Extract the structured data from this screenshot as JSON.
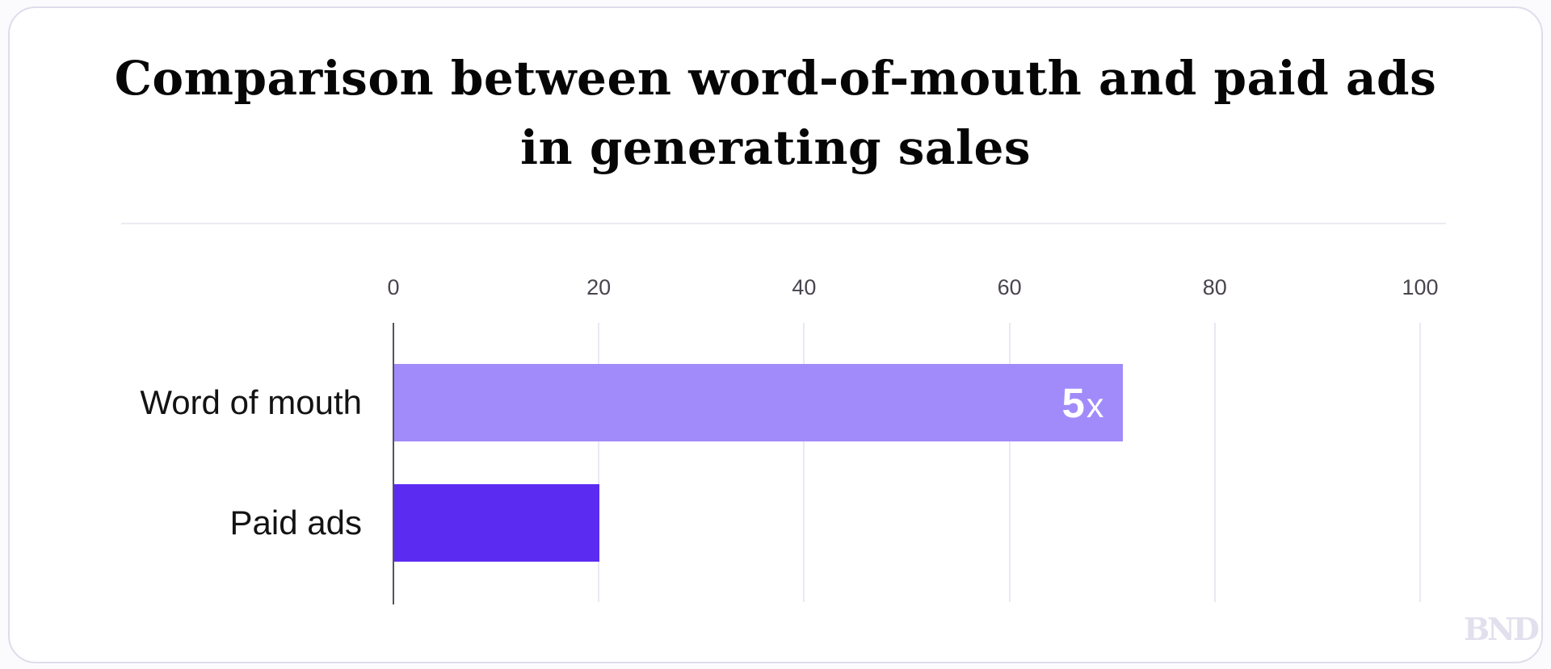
{
  "title": {
    "line1": "Comparison between word-of-mouth and paid ads",
    "line2": "in generating sales"
  },
  "watermark": "BND",
  "colors": {
    "bar_word_of_mouth": "#a18bfa",
    "bar_paid_ads": "#5c2bf2",
    "axis_line": "#56525c",
    "gridline": "#eae8f5",
    "tick_label": "#49444f",
    "category_label": "#131313",
    "value_label": "#ffffff",
    "card_border": "#dedcec"
  },
  "chart_data": {
    "type": "bar",
    "orientation": "horizontal",
    "title": "Comparison between word-of-mouth and paid ads in generating sales",
    "categories": [
      "Word of mouth",
      "Paid ads"
    ],
    "values": [
      71,
      20
    ],
    "value_labels": [
      {
        "big": "5",
        "small": "x"
      },
      null
    ],
    "bar_colors": [
      "#a18bfa",
      "#5c2bf2"
    ],
    "x_ticks": [
      0,
      20,
      40,
      60,
      80,
      100
    ],
    "xlim": [
      0,
      100
    ],
    "xlabel": "",
    "ylabel": "",
    "grid": true,
    "legend": "none"
  }
}
